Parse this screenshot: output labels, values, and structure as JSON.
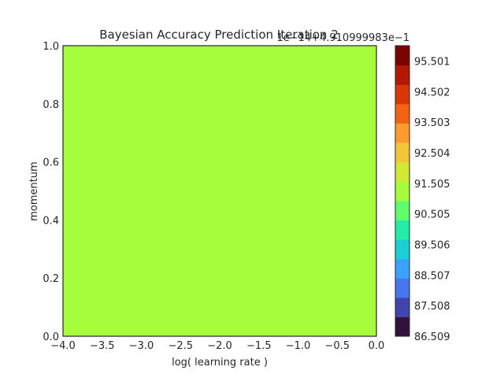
{
  "chart_data": {
    "type": "heatmap",
    "title": "Bayesian Accuracy Prediction Iteration 2",
    "xlabel": "log( learning rate )",
    "ylabel": "momentum",
    "xlim": [
      -4.0,
      0.0
    ],
    "ylim": [
      0.0,
      1.0
    ],
    "x_ticks": [
      "−4.0",
      "−3.5",
      "−3.0",
      "−2.5",
      "−2.0",
      "−1.5",
      "−1.0",
      "−0.5",
      "0.0"
    ],
    "y_ticks": [
      "0.0",
      "0.2",
      "0.4",
      "0.6",
      "0.8",
      "1.0"
    ],
    "field_color": "#a6fd3c",
    "colorbar": {
      "offset_text": "1e−14+4.910999983e−1",
      "tick_labels": [
        "86.509",
        "87.508",
        "88.507",
        "89.506",
        "90.505",
        "91.505",
        "92.504",
        "93.503",
        "94.502",
        "95.501"
      ],
      "colors": [
        "#30123b",
        "#4145ab",
        "#4675ed",
        "#39a2fc",
        "#1bcfd4",
        "#24eca6",
        "#61fc6c",
        "#a4fc3b",
        "#d1e834",
        "#f3c63a",
        "#fe9b2d",
        "#f36315",
        "#d93806",
        "#b11901",
        "#7a0402"
      ]
    }
  }
}
